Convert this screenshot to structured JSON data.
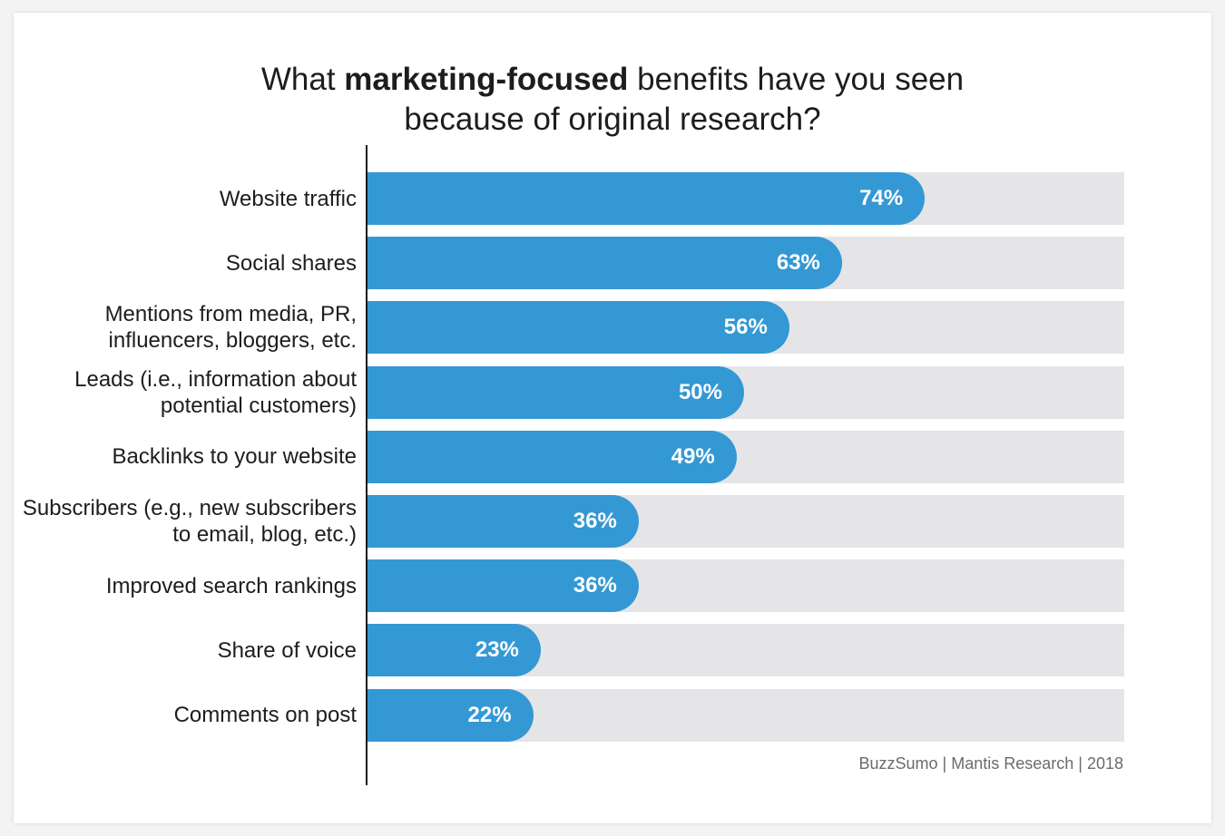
{
  "title": {
    "pre": "What ",
    "bold": "marketing-focused",
    "post": " benefits have you seen",
    "line2": "because of original research?"
  },
  "source": "BuzzSumo | Mantis Research | 2018",
  "colors": {
    "bar": "#3498d4",
    "track": "#e5e5e8",
    "value_text": "#ffffff"
  },
  "chart_data": {
    "type": "bar",
    "orientation": "horizontal",
    "title": "What marketing-focused benefits have you seen because of original research?",
    "categories": [
      [
        "Website traffic"
      ],
      [
        "Social shares"
      ],
      [
        "Mentions from media, PR,",
        "influencers, bloggers, etc."
      ],
      [
        "Leads (i.e., information about",
        "potential customers)"
      ],
      [
        "Backlinks to your website"
      ],
      [
        "Subscribers (e.g., new subscribers",
        "to email, blog, etc.)"
      ],
      [
        "Improved search rankings"
      ],
      [
        "Share of voice"
      ],
      [
        "Comments on post"
      ]
    ],
    "values": [
      74,
      63,
      56,
      50,
      49,
      36,
      36,
      23,
      22
    ],
    "value_labels": [
      "74%",
      "63%",
      "56%",
      "50%",
      "49%",
      "36%",
      "36%",
      "23%",
      "22%"
    ],
    "unit": "%",
    "xlim": [
      0,
      100
    ],
    "grid": false,
    "legend": "none"
  }
}
